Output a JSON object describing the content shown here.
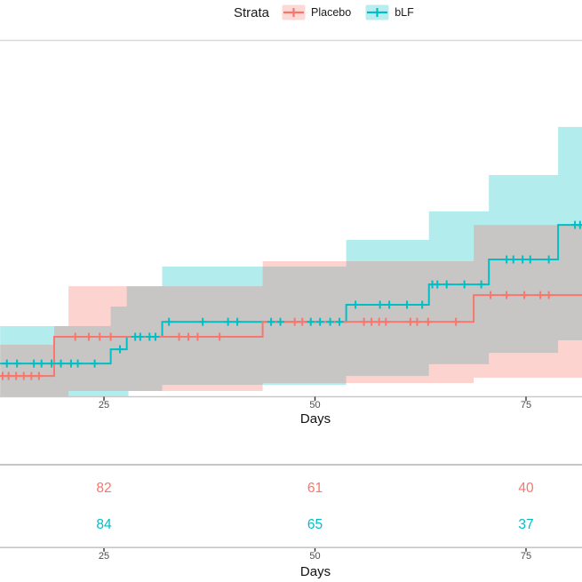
{
  "legend": {
    "title": "Strata",
    "items": [
      {
        "label": "Placebo",
        "color": "#F8766D",
        "fill_opacity": 0.28
      },
      {
        "label": "bLF",
        "color": "#00BFC4",
        "fill_opacity": 0.28
      }
    ]
  },
  "plot": {
    "x_label": "Days"
  },
  "chart_data": {
    "type": "line",
    "subtype": "kaplan-meier-cumulative-incidence-steps",
    "title": "",
    "xlabel": "Days",
    "x_ticks": [
      25,
      50,
      75
    ],
    "x_visible_range": [
      12.7,
      81.7
    ],
    "end_day": 81.7,
    "y_axis_note": "y-axis cropped out of screenshot; y given as fraction of visible panel height (0 = bottom axis line, 1 = top panel border)",
    "grid": false,
    "legend_position": "top",
    "series": [
      {
        "name": "Placebo",
        "color": "#F8766D",
        "steps": [
          [
            12.7,
            0.057
          ],
          [
            19.1,
            0.167
          ],
          [
            43.8,
            0.209
          ],
          [
            68.8,
            0.284
          ]
        ],
        "censor_marks": [
          {
            "y": 0.057,
            "days": [
              13.0,
              13.7,
              14.6,
              15.5,
              16.4,
              17.3
            ]
          },
          {
            "y": 0.167,
            "days": [
              21.6,
              23.2,
              24.5,
              25.8,
              33.9,
              35.0,
              36.1,
              38.7
            ]
          },
          {
            "y": 0.209,
            "days": [
              47.6,
              48.5,
              55.8,
              56.7,
              57.6,
              58.4,
              61.3,
              62.1,
              63.4,
              66.7
            ]
          },
          {
            "y": 0.284,
            "days": [
              70.8,
              72.7,
              74.8,
              76.7,
              77.7
            ]
          }
        ]
      },
      {
        "name": "bLF",
        "color": "#00BFC4",
        "steps": [
          [
            12.7,
            0.092
          ],
          [
            25.8,
            0.132
          ],
          [
            27.7,
            0.167
          ],
          [
            31.9,
            0.209
          ],
          [
            53.7,
            0.257
          ],
          [
            63.5,
            0.314
          ],
          [
            70.6,
            0.384
          ],
          [
            78.8,
            0.481
          ]
        ],
        "censor_marks": [
          {
            "y": 0.092,
            "days": [
              13.5,
              14.7,
              16.7,
              17.6,
              18.8,
              19.9,
              21.1,
              21.9,
              23.9
            ]
          },
          {
            "y": 0.132,
            "days": [
              26.9
            ]
          },
          {
            "y": 0.167,
            "days": [
              28.7,
              29.3,
              30.4,
              31.1
            ]
          },
          {
            "y": 0.209,
            "days": [
              32.7,
              36.7,
              39.7,
              40.8,
              44.8,
              45.9,
              49.5,
              50.6,
              51.8,
              52.9
            ]
          },
          {
            "y": 0.257,
            "days": [
              54.8,
              57.7,
              58.8,
              60.9,
              62.7
            ]
          },
          {
            "y": 0.314,
            "days": [
              63.9,
              64.5,
              65.6,
              67.7,
              69.7
            ]
          },
          {
            "y": 0.384,
            "days": [
              72.7,
              73.5,
              74.6,
              75.5,
              77.7
            ]
          },
          {
            "y": 0.481,
            "days": [
              80.8,
              81.4
            ]
          }
        ]
      }
    ],
    "confidence_bands": [
      {
        "name": "bLF",
        "color": "#00BFC4",
        "opacity": 0.3,
        "upper": [
          [
            12.7,
            0.197
          ],
          [
            25.8,
            0.252
          ],
          [
            27.7,
            0.309
          ],
          [
            31.9,
            0.364
          ],
          [
            53.7,
            0.439
          ],
          [
            63.5,
            0.519
          ],
          [
            70.6,
            0.621
          ],
          [
            78.8,
            0.756
          ]
        ],
        "lower": [
          [
            12.7,
            0.0
          ],
          [
            27.9,
            0.015
          ],
          [
            31.9,
            0.032
          ],
          [
            53.7,
            0.057
          ],
          [
            63.5,
            0.09
          ],
          [
            70.6,
            0.122
          ],
          [
            78.8,
            0.157
          ]
        ]
      },
      {
        "name": "Placebo",
        "color": "#F8766D",
        "opacity": 0.32,
        "upper": [
          [
            12.7,
            0.145
          ],
          [
            19.1,
            0.197
          ],
          [
            20.8,
            0.309
          ],
          [
            43.8,
            0.379
          ],
          [
            68.8,
            0.481
          ]
        ],
        "lower": [
          [
            12.7,
            0.0
          ],
          [
            20.8,
            0.015
          ],
          [
            43.8,
            0.037
          ],
          [
            68.8,
            0.052
          ]
        ]
      }
    ],
    "risk_table": {
      "x_label": "Days",
      "at_days": [
        25,
        50,
        75
      ],
      "rows": [
        {
          "name": "Placebo",
          "color": "#F8766D",
          "values": [
            82,
            61,
            40
          ]
        },
        {
          "name": "bLF",
          "color": "#00BFC4",
          "values": [
            84,
            65,
            37
          ]
        }
      ]
    }
  }
}
